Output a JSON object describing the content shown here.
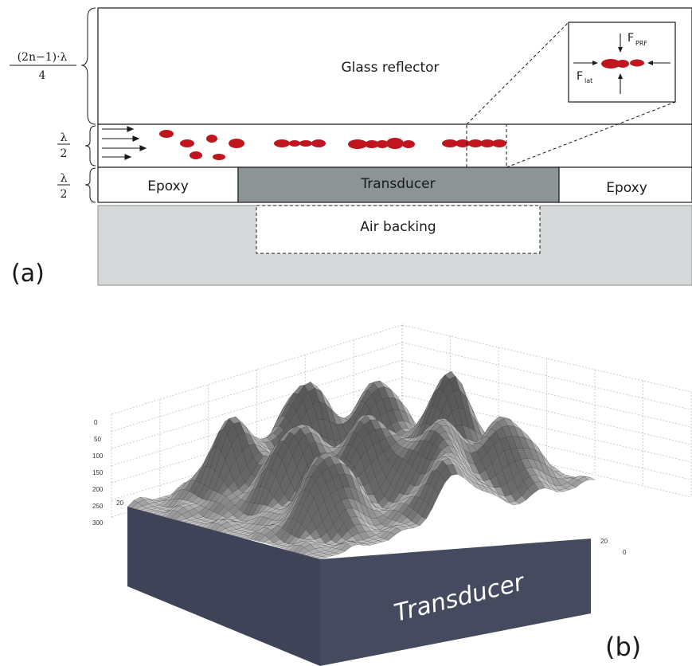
{
  "diagram_a": {
    "panel_label": "(a)",
    "glass_label": "Glass reflector",
    "transducer_label": "Transducer",
    "epoxy_left": "Epoxy",
    "epoxy_right": "Epoxy",
    "air_label": "Air backing",
    "dim_top_num": "(2n−1)·λ",
    "dim_top_den": "4",
    "dim_mid_num": "λ",
    "dim_mid_den": "2",
    "dim_low_num": "λ",
    "dim_low_den": "2",
    "inset_force_top": "F",
    "inset_force_top_sub": "PRF",
    "inset_force_side": "F",
    "inset_force_side_sub": "lat",
    "colors": {
      "particle": "#c0151f",
      "transducer": "#8c9496",
      "backing": "#d6d9da",
      "block": "#3e4358"
    }
  },
  "diagram_b": {
    "panel_label": "(b)",
    "transducer_label": "Transducer",
    "z_ticks": [
      "0",
      "50",
      "100",
      "150",
      "200",
      "250",
      "300"
    ],
    "left_tick": "20",
    "right_ticks": [
      "0",
      "20"
    ]
  }
}
